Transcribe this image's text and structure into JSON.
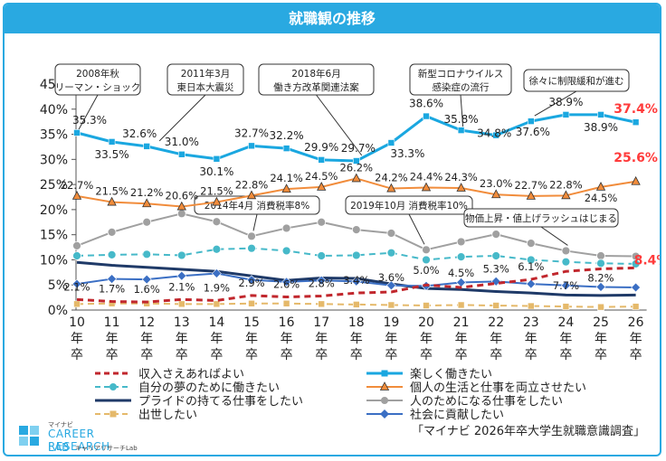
{
  "page": {
    "title": "就職観の推移",
    "source": "「マイナビ 2026年卒大学生就職意識調査」"
  },
  "logo": {
    "small": "マイナビ",
    "line1": "CAREER RESEARCH",
    "line2": "LAB",
    "sub": "キャリアリサーチLab"
  },
  "colors": {
    "header": "#29a9e1",
    "border": "#29a9e1",
    "highlight": "#ff3b3b"
  },
  "chart_data": {
    "type": "line",
    "title": "就職観の推移",
    "categories": [
      "10年卒",
      "11年卒",
      "12年卒",
      "13年卒",
      "14年卒",
      "15年卒",
      "16年卒",
      "17年卒",
      "18年卒",
      "19年卒",
      "20年卒",
      "21年卒",
      "22年卒",
      "23年卒",
      "24年卒",
      "25年卒",
      "26年卒"
    ],
    "ylim": [
      0,
      45
    ],
    "yticks": [
      "0%",
      "5%",
      "10%",
      "15%",
      "20%",
      "25%",
      "30%",
      "35%",
      "40%",
      "45%"
    ],
    "series": [
      {
        "name": "楽しく働きたい",
        "color": "#1aa7e0",
        "style": "solid",
        "marker": "square",
        "width": 3,
        "values": [
          35.3,
          33.5,
          32.6,
          31.0,
          30.1,
          32.7,
          32.2,
          29.9,
          29.7,
          33.3,
          38.6,
          35.8,
          34.8,
          37.6,
          38.9,
          38.9,
          37.4
        ],
        "labels": [
          "35.3%",
          "33.5%",
          "32.6%",
          "31.0%",
          "30.1%",
          "32.7%",
          "32.2%",
          "29.9%",
          "29.7%",
          "33.3%",
          "38.6%",
          "35.8%",
          "34.8%",
          "37.6%",
          "38.9%",
          "38.9%",
          "37.4%"
        ]
      },
      {
        "name": "個人の生活と仕事を両立させたい",
        "color": "#f18c3b",
        "style": "solid",
        "marker": "triangle",
        "width": 2,
        "values": [
          22.7,
          21.5,
          21.2,
          20.6,
          21.5,
          22.8,
          24.1,
          24.5,
          26.2,
          24.2,
          24.4,
          24.3,
          23.0,
          22.7,
          22.8,
          24.5,
          25.6
        ],
        "labels": [
          "22.7%",
          "21.5%",
          "21.2%",
          "20.6%",
          "21.5%",
          "22.8%",
          "24.1%",
          "24.5%",
          "26.2%",
          "24.2%",
          "24.4%",
          "24.3%",
          "23.0%",
          "22.7%",
          "22.8%",
          "24.5%",
          "25.6%"
        ]
      },
      {
        "name": "人のためになる仕事をしたい",
        "color": "#a0a0a0",
        "style": "solid",
        "marker": "circle",
        "width": 2,
        "values": [
          12.8,
          15.5,
          17.5,
          19.2,
          17.6,
          14.7,
          16.3,
          17.5,
          16.0,
          15.3,
          12.0,
          13.6,
          15.1,
          13.3,
          11.8,
          10.8,
          10.7
        ]
      },
      {
        "name": "自分の夢のために働きたい",
        "color": "#46b9c9",
        "style": "dash",
        "marker": "circle",
        "width": 2,
        "values": [
          10.8,
          11.0,
          11.1,
          10.9,
          12.1,
          12.3,
          11.8,
          10.8,
          10.9,
          11.4,
          10.0,
          10.6,
          10.8,
          10.0,
          9.6,
          9.3,
          9.2
        ]
      },
      {
        "name": "プライドの持てる仕事をしたい",
        "color": "#1f3a68",
        "style": "solid",
        "marker": "none",
        "width": 3,
        "values": [
          9.5,
          8.9,
          8.5,
          8.1,
          7.7,
          6.8,
          5.9,
          6.4,
          6.3,
          5.2,
          4.3,
          4.1,
          3.7,
          3.4,
          3.0,
          2.9,
          3.0
        ]
      },
      {
        "name": "社会に貢献したい",
        "color": "#3b6fc4",
        "style": "solid",
        "marker": "diamond",
        "width": 2,
        "values": [
          5.2,
          6.2,
          6.1,
          6.8,
          7.3,
          6.0,
          5.6,
          5.9,
          5.7,
          4.9,
          4.8,
          5.5,
          5.7,
          5.2,
          4.9,
          4.6,
          4.5
        ]
      },
      {
        "name": "収入さえあればよい",
        "color": "#c1272d",
        "style": "dash",
        "marker": "none",
        "width": 3,
        "values": [
          2.1,
          1.7,
          1.6,
          2.1,
          1.9,
          2.9,
          2.6,
          2.8,
          3.4,
          3.6,
          5.0,
          4.5,
          5.3,
          6.1,
          7.7,
          8.2,
          8.4
        ],
        "labels": [
          "2.1%",
          "1.7%",
          "1.6%",
          "2.1%",
          "1.9%",
          "2.9%",
          "2.6%",
          "2.8%",
          "3.4%",
          "3.6%",
          "5.0%",
          "4.5%",
          "5.3%",
          "6.1%",
          "7.7%",
          "8.2%",
          "8.4%"
        ]
      },
      {
        "name": "出世したい",
        "color": "#e5b96a",
        "style": "dash",
        "marker": "square",
        "width": 2,
        "values": [
          1.2,
          1.3,
          1.3,
          1.2,
          1.2,
          1.3,
          1.3,
          1.2,
          1.1,
          1.0,
          0.9,
          1.0,
          0.9,
          0.8,
          0.7,
          0.6,
          0.7
        ]
      }
    ],
    "legend": [
      {
        "name": "収入さえあればよい",
        "column": "left"
      },
      {
        "name": "楽しく働きたい",
        "column": "right"
      },
      {
        "name": "自分の夢のために働きたい",
        "column": "left"
      },
      {
        "name": "個人の生活と仕事を両立させたい",
        "column": "right"
      },
      {
        "name": "プライドの持てる仕事をしたい",
        "column": "left"
      },
      {
        "name": "人のためになる仕事をしたい",
        "column": "right"
      },
      {
        "name": "出世したい",
        "column": "left"
      },
      {
        "name": "社会に貢献したい",
        "column": "right"
      }
    ],
    "annotations": [
      {
        "lines": [
          "2008年秋",
          "リーマン・ショック"
        ],
        "category": "10年卒"
      },
      {
        "lines": [
          "2011年3月",
          "東日本大震災"
        ],
        "category": "12年卒"
      },
      {
        "lines": [
          "2018年6月",
          "働き方改革関連法案"
        ],
        "category": "18年卒"
      },
      {
        "lines": [
          "新型コロナウイルス",
          "感染症の流行"
        ],
        "category": "21年卒"
      },
      {
        "lines": [
          "徐々に制限緩和が進む"
        ],
        "category": "23年卒"
      },
      {
        "lines": [
          "2014年4月 消費税率8%"
        ],
        "category": "15年卒"
      },
      {
        "lines": [
          "2019年10月 消費税率10%"
        ],
        "category": "20年卒"
      },
      {
        "lines": [
          "物価上昇・値上げラッシュはじまる"
        ],
        "category": "24年卒"
      }
    ]
  }
}
